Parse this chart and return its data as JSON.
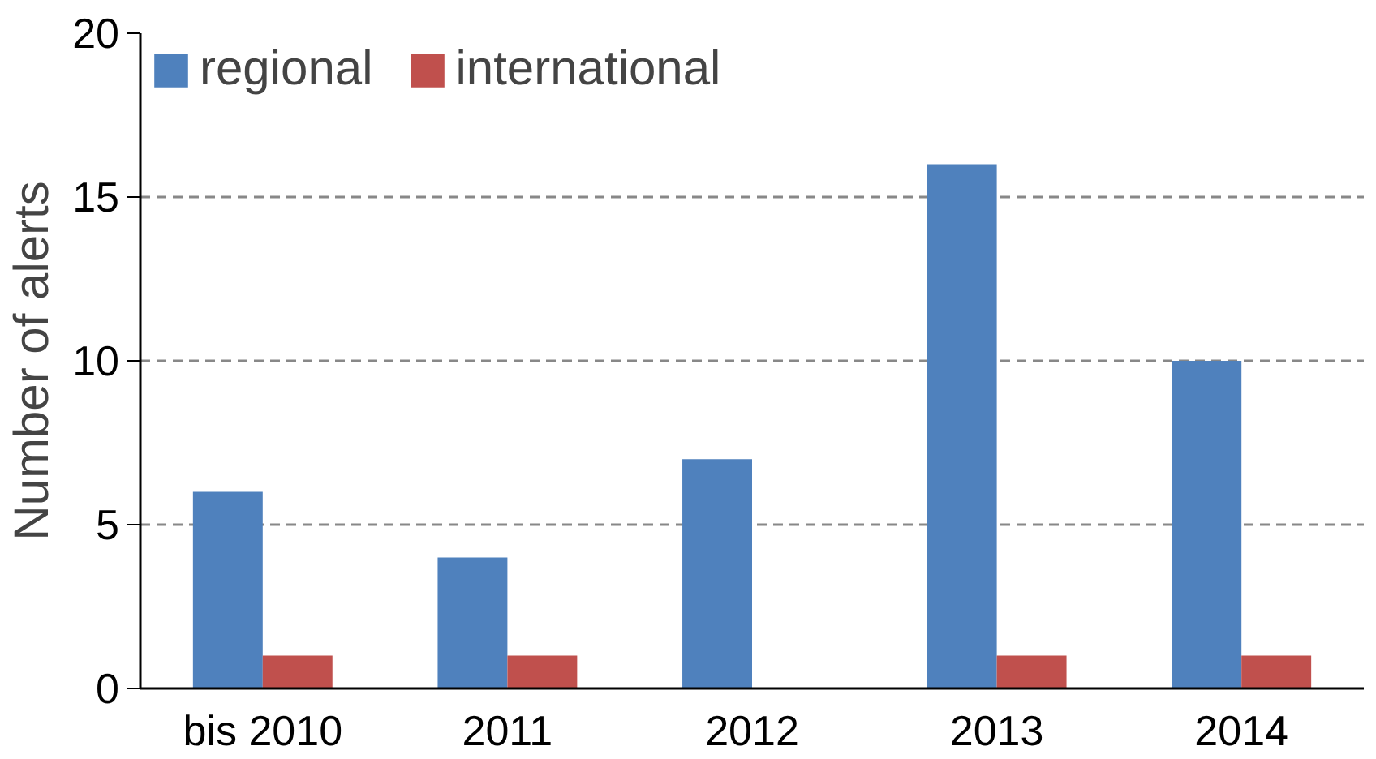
{
  "chart_data": {
    "type": "bar",
    "ylabel": "Number of alerts",
    "categories": [
      "bis 2010",
      "2011",
      "2012",
      "2013",
      "2014"
    ],
    "series": [
      {
        "name": "regional",
        "color": "#4f81bd",
        "values": [
          6,
          4,
          7,
          16,
          10
        ]
      },
      {
        "name": "international",
        "color": "#c0504d",
        "values": [
          1,
          1,
          0,
          1,
          1
        ]
      }
    ],
    "ylim": [
      0,
      20
    ],
    "yticks": [
      0,
      5,
      10,
      15,
      20
    ],
    "grid": "y",
    "legend": "top left"
  }
}
